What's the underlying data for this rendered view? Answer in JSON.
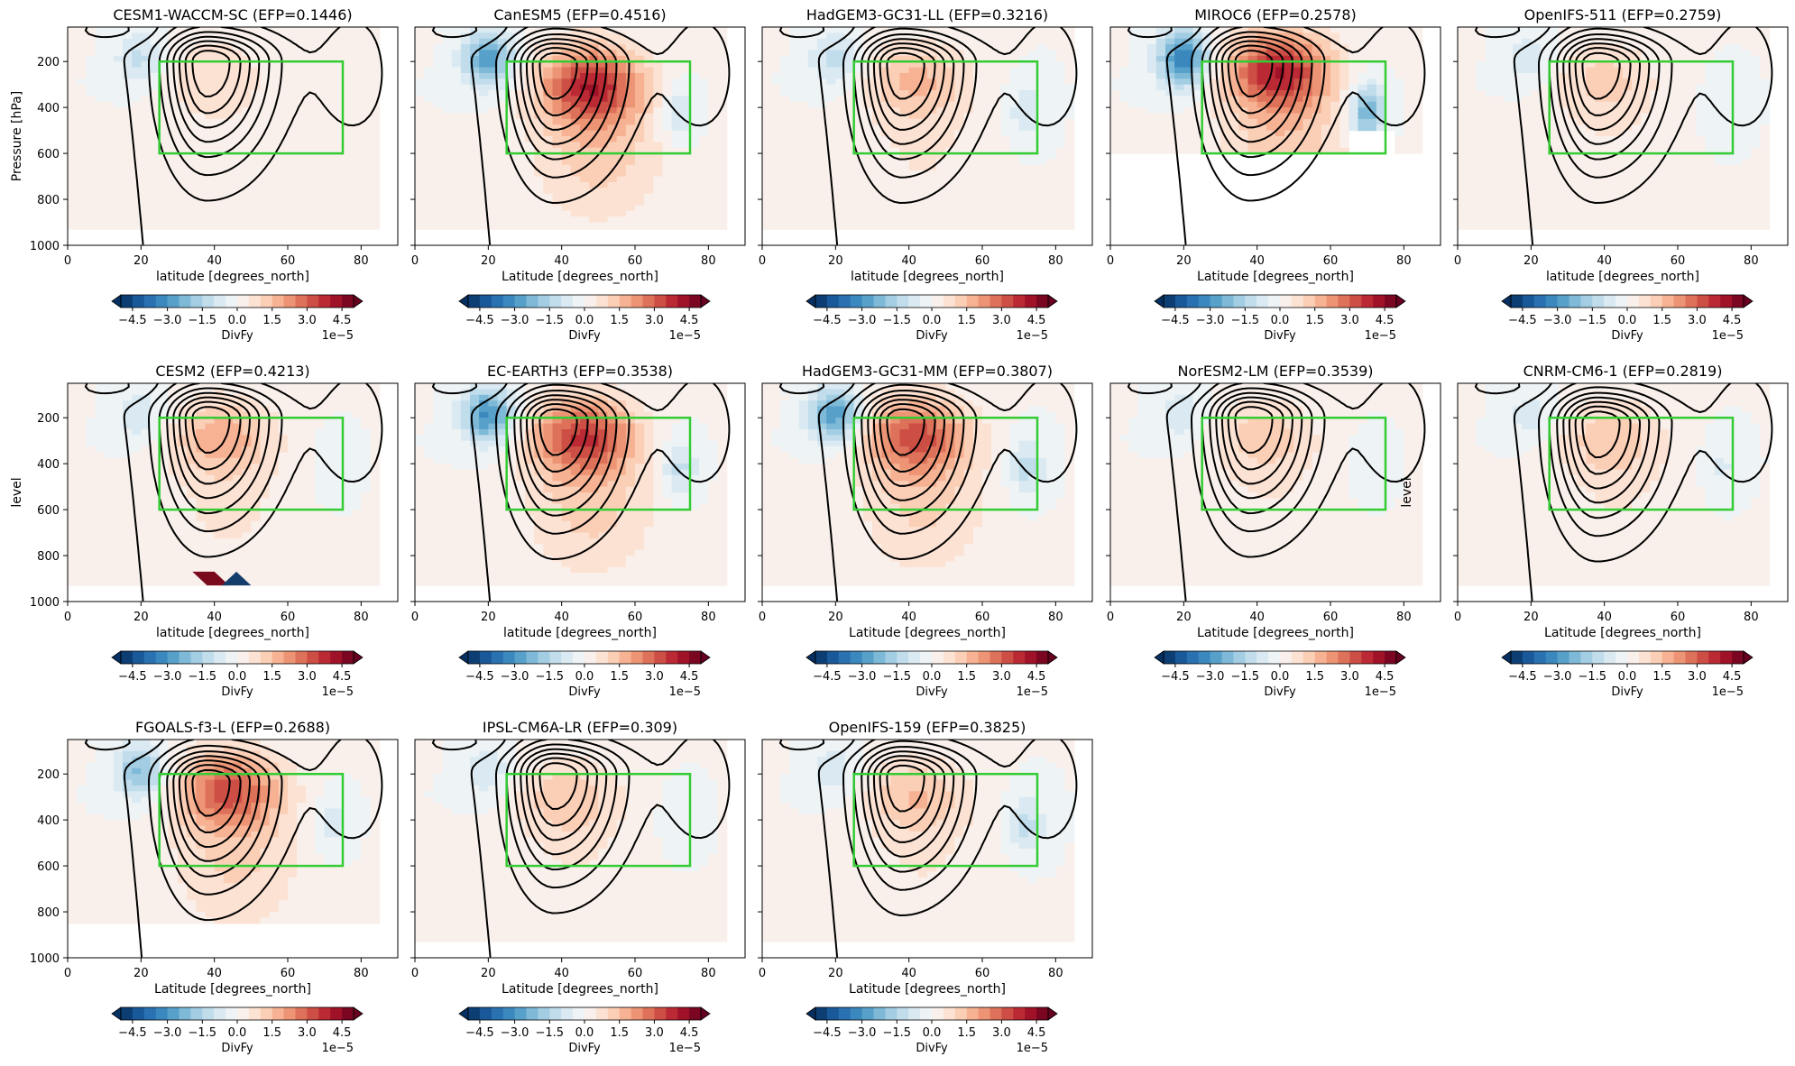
{
  "chart_data": {
    "type": "heatmap",
    "description_keys": "contourf of DivFy with black zonal-wind contours (dashed negative) and a green box",
    "colormap": "RdBu_r",
    "colorbar": {
      "label": "DivFy",
      "ticks": [
        "−4.5",
        "−3.0",
        "−1.5",
        "0.0",
        "1.5",
        "3.0",
        "4.5"
      ],
      "tick_values": [
        -4.5,
        -3.0,
        -1.5,
        0.0,
        1.5,
        3.0,
        4.5
      ],
      "multiplier": "1e−5",
      "range": [
        -5,
        5
      ],
      "extend": "both"
    },
    "box": {
      "lat": [
        25,
        75
      ],
      "level": [
        200,
        600
      ],
      "color": "#33cc33"
    },
    "xlim": [
      0,
      90
    ],
    "ylim": [
      1000,
      50
    ],
    "xticks": [
      "0",
      "20",
      "40",
      "60",
      "80"
    ],
    "yticks": [
      "200",
      "400",
      "600",
      "800",
      "1000"
    ],
    "panels": [
      {
        "title": "CESM1-WACCM-SC (EFP=0.1446)",
        "xlabel": "latitude [degrees_north]",
        "ylabel": "Pressure [hPa]",
        "data_bottom": 930,
        "pos_amp": 0.9,
        "neg_amp": 1.2,
        "peak_lat": 40,
        "peak_lev": 260,
        "jet_lat": 38,
        "jet_lev": 200,
        "neg_lat2": 0,
        "neg2_amp": 0,
        "pos2": null,
        "extra": null
      },
      {
        "title": "CanESM5 (EFP=0.4516)",
        "xlabel": "Latitude [degrees_north]",
        "ylabel": "",
        "data_bottom": 930,
        "pos_amp": 3.6,
        "neg_amp": 2.8,
        "peak_lat": 48,
        "peak_lev": 300,
        "jet_lat": 38,
        "jet_lev": 210,
        "neg_lat2": 72,
        "neg2_amp": 1.2,
        "pos2": null,
        "extra": null
      },
      {
        "title": "HadGEM3-GC31-LL (EFP=0.3216)",
        "xlabel": "latitude [degrees_north]",
        "ylabel": "",
        "data_bottom": 930,
        "pos_amp": 1.5,
        "neg_amp": 1.3,
        "peak_lat": 42,
        "peak_lev": 280,
        "jet_lat": 38,
        "jet_lev": 210,
        "neg_lat2": 72,
        "neg2_amp": 0.9,
        "pos2": null,
        "extra": null
      },
      {
        "title": "MIROC6 (EFP=0.2578)",
        "xlabel": "Latitude [degrees_north]",
        "ylabel": "",
        "data_bottom": 600,
        "pos_amp": 3.8,
        "neg_amp": 3.5,
        "peak_lat": 46,
        "peak_lev": 240,
        "jet_lat": 38,
        "jet_lev": 200,
        "neg_lat2": 70,
        "neg2_amp": 2.6,
        "pos2": null,
        "extra": null
      },
      {
        "title": "OpenIFS-511 (EFP=0.2759)",
        "xlabel": "latitude [degrees_north]",
        "ylabel": "",
        "data_bottom": 930,
        "pos_amp": 1.1,
        "neg_amp": 0.9,
        "peak_lat": 40,
        "peak_lev": 280,
        "jet_lat": 38,
        "jet_lev": 210,
        "neg_lat2": 72,
        "neg2_amp": 0.5,
        "pos2": null,
        "extra": null
      },
      {
        "title": "CESM2 (EFP=0.4213)",
        "xlabel": "latitude [degrees_north]",
        "ylabel": "level",
        "data_bottom": 930,
        "pos_amp": 1.7,
        "neg_amp": 1.0,
        "peak_lat": 42,
        "peak_lev": 280,
        "jet_lat": 38,
        "jet_lev": 200,
        "neg_lat2": 72,
        "neg2_amp": 0.5,
        "pos2": null,
        "extra": "cesm2"
      },
      {
        "title": "EC-EARTH3 (EFP=0.3538)",
        "xlabel": "latitude [degrees_north]",
        "ylabel": "",
        "data_bottom": 930,
        "pos_amp": 3.3,
        "neg_amp": 3.2,
        "peak_lat": 46,
        "peak_lev": 280,
        "jet_lat": 38,
        "jet_lev": 210,
        "neg_lat2": 72,
        "neg2_amp": 1.3,
        "pos2": null,
        "extra": null
      },
      {
        "title": "HadGEM3-GC31-MM (EFP=0.3807)",
        "xlabel": "Latitude [degrees_north]",
        "ylabel": "",
        "data_bottom": 930,
        "pos_amp": 3.0,
        "neg_amp": 3.0,
        "peak_lat": 42,
        "peak_lev": 280,
        "jet_lat": 38,
        "jet_lev": 210,
        "neg_lat2": 72,
        "neg2_amp": 1.3,
        "pos2": null,
        "extra": null
      },
      {
        "title": "NorESM2-LM (EFP=0.3539)",
        "xlabel": "Latitude [degrees_north]",
        "ylabel": "",
        "data_bottom": 930,
        "pos_amp": 1.2,
        "neg_amp": 0.9,
        "peak_lat": 42,
        "peak_lev": 280,
        "jet_lat": 38,
        "jet_lev": 200,
        "neg_lat2": 70,
        "neg2_amp": 0.5,
        "pos2": null,
        "extra": null
      },
      {
        "title": "CNRM-CM6-1 (EFP=0.2819)",
        "xlabel": "Latitude [degrees_north]",
        "ylabel": "level",
        "data_bottom": 930,
        "pos_amp": 1.3,
        "neg_amp": 0.8,
        "peak_lat": 42,
        "peak_lev": 290,
        "jet_lat": 38,
        "jet_lev": 220,
        "neg_lat2": 72,
        "neg2_amp": 0.6,
        "pos2": null,
        "extra": null
      },
      {
        "title": "FGOALS-f3-L (EFP=0.2688)",
        "xlabel": "Latitude [degrees_north]",
        "ylabel": "",
        "data_bottom": 850,
        "pos_amp": 3.0,
        "neg_amp": 2.2,
        "peak_lat": 44,
        "peak_lev": 270,
        "jet_lat": 38,
        "jet_lev": 230,
        "neg_lat2": 72,
        "neg2_amp": 0.8,
        "pos2": null,
        "extra": null
      },
      {
        "title": "IPSL-CM6A-LR (EFP=0.309)",
        "xlabel": "Latitude [degrees_north]",
        "ylabel": "",
        "data_bottom": 930,
        "pos_amp": 1.3,
        "neg_amp": 0.9,
        "peak_lat": 42,
        "peak_lev": 300,
        "jet_lat": 38,
        "jet_lev": 200,
        "neg_lat2": 72,
        "neg2_amp": 0.5,
        "pos2": null,
        "extra": null
      },
      {
        "title": "OpenIFS-159 (EFP=0.3825)",
        "xlabel": "Latitude [degrees_north]",
        "ylabel": "",
        "data_bottom": 930,
        "pos_amp": 1.4,
        "neg_amp": 0.9,
        "peak_lat": 42,
        "peak_lev": 290,
        "jet_lat": 38,
        "jet_lev": 210,
        "neg_lat2": 72,
        "neg2_amp": 1.2,
        "pos2": null,
        "extra": null
      }
    ]
  }
}
